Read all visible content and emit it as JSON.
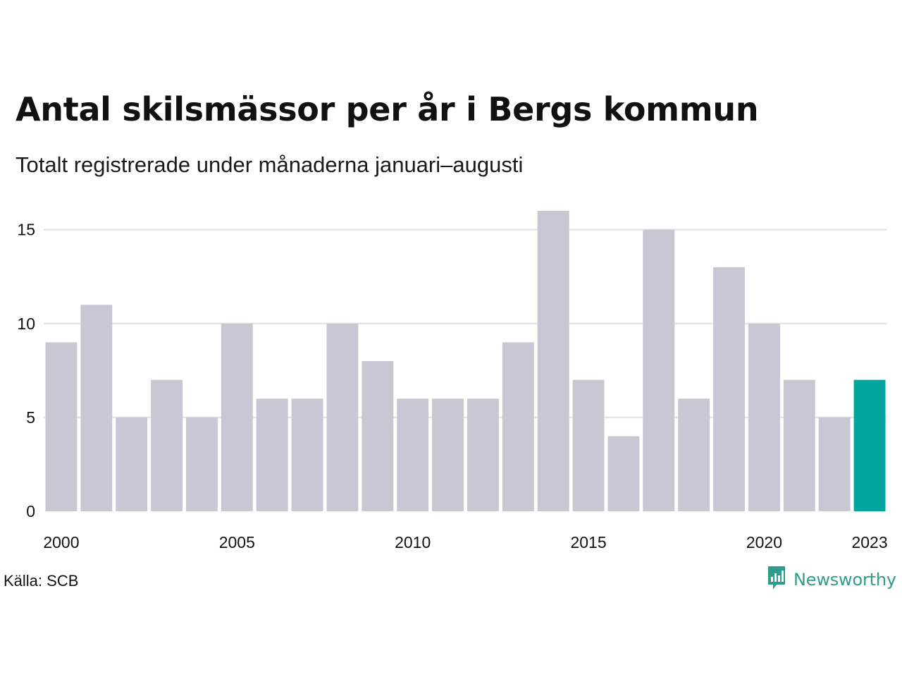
{
  "title": "Antal skilsmässor per år i Bergs kommun",
  "subtitle": "Totalt registrerade under månaderna januari–augusti",
  "source": "Källa: SCB",
  "brand": {
    "name": "Newsworthy",
    "icon": "newsworthy-logo-icon",
    "color": "#2f9c8c"
  },
  "colors": {
    "bar": "#c8c7d3",
    "highlight": "#00a69c",
    "grid": "#e6e6e6"
  },
  "chart_data": {
    "type": "bar",
    "categories": [
      2000,
      2001,
      2002,
      2003,
      2004,
      2005,
      2006,
      2007,
      2008,
      2009,
      2010,
      2011,
      2012,
      2013,
      2014,
      2015,
      2016,
      2017,
      2018,
      2019,
      2020,
      2021,
      2022,
      2023
    ],
    "values": [
      9,
      11,
      5,
      7,
      5,
      10,
      6,
      6,
      10,
      8,
      6,
      6,
      6,
      9,
      16,
      7,
      4,
      15,
      6,
      13,
      10,
      7,
      5,
      7
    ],
    "highlight_category": 2023,
    "x_tick_labels": [
      "2000",
      "2005",
      "2010",
      "2015",
      "2020",
      "2023"
    ],
    "y_ticks": [
      0,
      5,
      10,
      15
    ],
    "ylim": [
      0,
      16
    ],
    "xlabel": "",
    "ylabel": "",
    "grid": true,
    "legend": "none"
  }
}
